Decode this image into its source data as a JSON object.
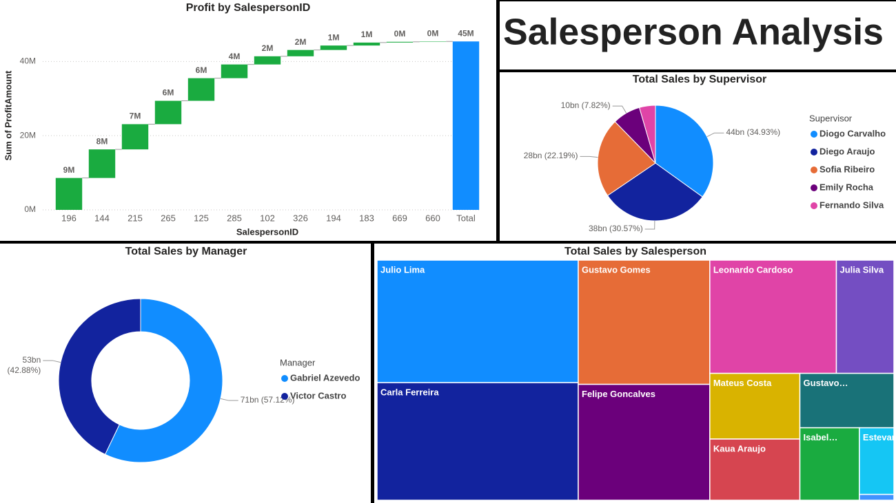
{
  "title": "Salesperson Analysis",
  "chart_data": [
    {
      "type": "waterfall",
      "title": "Profit by SalespersonID",
      "x_label": "SalespersonID",
      "y_label": "Sum of ProfitAmount",
      "categories": [
        "196",
        "144",
        "215",
        "265",
        "125",
        "285",
        "102",
        "326",
        "194",
        "183",
        "669",
        "660",
        "Total"
      ],
      "values": [
        8.6,
        7.7,
        6.8,
        6.3,
        6.1,
        3.7,
        2.2,
        1.7,
        1.2,
        0.8,
        0.2,
        0.1,
        45.4
      ],
      "value_labels": [
        "9M",
        "8M",
        "7M",
        "6M",
        "6M",
        "4M",
        "2M",
        "2M",
        "1M",
        "1M",
        "0M",
        "0M",
        "45M"
      ],
      "increase_color": "#1aab40",
      "total_color": "#118dff",
      "ylim": [
        0,
        46
      ],
      "yticks": [
        {
          "value": 0,
          "label": "0M"
        },
        {
          "value": 20,
          "label": "20M"
        },
        {
          "value": 40,
          "label": "40M"
        }
      ],
      "grid": true
    },
    {
      "type": "pie",
      "title": "Total Sales by Supervisor",
      "legend_title": "Supervisor",
      "categories": [
        "Diogo Carvalho",
        "Diego Araujo",
        "Sofia Ribeiro",
        "Emily Rocha",
        "Fernando Silva"
      ],
      "values": [
        34.93,
        30.57,
        22.19,
        7.82,
        4.49
      ],
      "value_labels": [
        "44bn (34.93%)",
        "38bn (30.57%)",
        "28bn (22.19%)",
        "10bn (7.82%)",
        null
      ],
      "colors": [
        "#118dff",
        "#12239e",
        "#e66c37",
        "#6b007b",
        "#e044a7"
      ]
    },
    {
      "type": "donut",
      "title": "Total Sales by Manager",
      "legend_title": "Manager",
      "categories": [
        "Gabriel Azevedo",
        "Victor Castro"
      ],
      "values": [
        57.12,
        42.88
      ],
      "value_labels": [
        "71bn (57.12%)",
        "53bn (42.88%)"
      ],
      "colors": [
        "#118dff",
        "#12239e"
      ]
    },
    {
      "type": "treemap",
      "title": "Total Sales by Salesperson",
      "categories": [
        "Julio Lima",
        "Carla Ferreira",
        "Gustavo Gomes",
        "Felipe Goncalves",
        "Leonardo Cardoso",
        "Julia Silva",
        "Mateus Costa",
        "Kaua Araujo",
        "Gustavo…",
        "Isabel…",
        "Estevan Souza",
        null
      ],
      "values": [
        24.6,
        23.6,
        16.3,
        15.2,
        14.3,
        6.5,
        5.9,
        5.5,
        5.1,
        4.3,
        2.3,
        0.2
      ],
      "colors": [
        "#118dff",
        "#12239e",
        "#e66c37",
        "#6b007b",
        "#e044a7",
        "#744ec2",
        "#d9b300",
        "#d64550",
        "#197278",
        "#1aab40",
        "#15c6f4",
        "#4092ff"
      ]
    }
  ]
}
